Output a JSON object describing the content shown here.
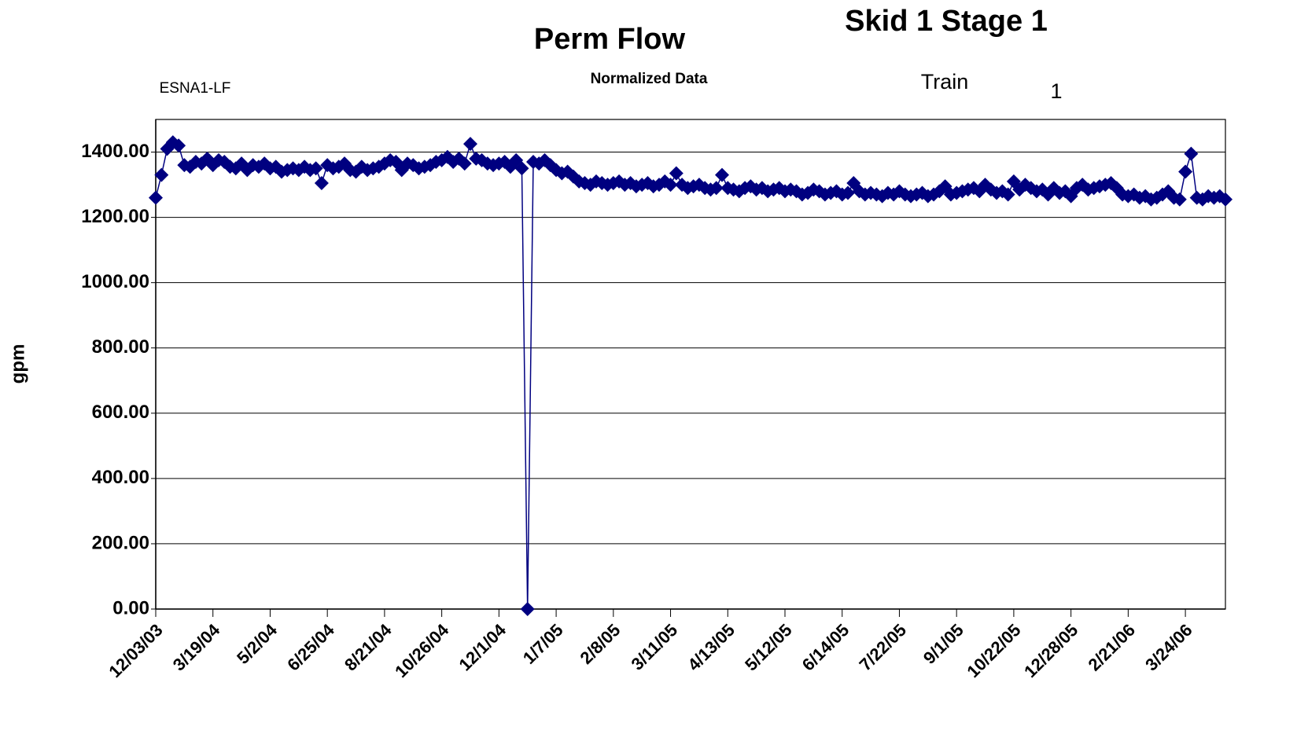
{
  "chart_data": {
    "type": "line",
    "title": "Perm Flow",
    "subtitle": "Normalized Data",
    "annotations": [
      "Skid 1 Stage 1",
      "ESNA1-LF",
      "Train",
      "1"
    ],
    "y_label": "gpm",
    "categories": [
      "12/03/03",
      null,
      null,
      null,
      null,
      null,
      null,
      null,
      null,
      null,
      "3/19/04",
      null,
      null,
      null,
      null,
      null,
      null,
      null,
      null,
      null,
      "5/2/04",
      null,
      null,
      null,
      null,
      null,
      null,
      null,
      null,
      null,
      "6/25/04",
      null,
      null,
      null,
      null,
      null,
      null,
      null,
      null,
      null,
      "8/21/04",
      null,
      null,
      null,
      null,
      null,
      null,
      null,
      null,
      null,
      "10/26/04",
      null,
      null,
      null,
      null,
      null,
      null,
      null,
      null,
      null,
      "12/1/04",
      null,
      null,
      null,
      null,
      null,
      null,
      null,
      null,
      null,
      "1/7/05",
      null,
      null,
      null,
      null,
      null,
      null,
      null,
      null,
      null,
      "2/8/05",
      null,
      null,
      null,
      null,
      null,
      null,
      null,
      null,
      null,
      "3/11/05",
      null,
      null,
      null,
      null,
      null,
      null,
      null,
      null,
      null,
      "4/13/05",
      null,
      null,
      null,
      null,
      null,
      null,
      null,
      null,
      null,
      "5/12/05",
      null,
      null,
      null,
      null,
      null,
      null,
      null,
      null,
      null,
      "6/14/05",
      null,
      null,
      null,
      null,
      null,
      null,
      null,
      null,
      null,
      "7/22/05",
      null,
      null,
      null,
      null,
      null,
      null,
      null,
      null,
      null,
      "9/1/05",
      null,
      null,
      null,
      null,
      null,
      null,
      null,
      null,
      null,
      "10/22/05",
      null,
      null,
      null,
      null,
      null,
      null,
      null,
      null,
      null,
      "12/28/05",
      null,
      null,
      null,
      null,
      null,
      null,
      null,
      null,
      null,
      "2/21/06",
      null,
      null,
      null,
      null,
      null,
      null,
      null,
      null,
      null,
      "3/24/06",
      null,
      null,
      null,
      null,
      null,
      null,
      null
    ],
    "series": [
      {
        "color": "#000080",
        "values": [
          1260,
          1330,
          1410,
          1430,
          1420,
          1360,
          1355,
          1370,
          1365,
          1380,
          1360,
          1375,
          1370,
          1355,
          1350,
          1365,
          1345,
          1360,
          1355,
          1365,
          1350,
          1355,
          1340,
          1345,
          1350,
          1345,
          1355,
          1345,
          1350,
          1305,
          1360,
          1350,
          1355,
          1365,
          1345,
          1340,
          1355,
          1345,
          1350,
          1355,
          1365,
          1375,
          1370,
          1345,
          1365,
          1360,
          1350,
          1355,
          1360,
          1370,
          1375,
          1385,
          1370,
          1380,
          1365,
          1425,
          1380,
          1375,
          1365,
          1360,
          1365,
          1370,
          1355,
          1375,
          1350,
          0,
          1370,
          1365,
          1375,
          1360,
          1345,
          1335,
          1340,
          1325,
          1310,
          1305,
          1300,
          1310,
          1305,
          1300,
          1305,
          1310,
          1300,
          1305,
          1295,
          1300,
          1305,
          1295,
          1300,
          1310,
          1300,
          1335,
          1300,
          1290,
          1295,
          1300,
          1290,
          1285,
          1290,
          1330,
          1290,
          1285,
          1280,
          1290,
          1295,
          1285,
          1290,
          1280,
          1285,
          1290,
          1280,
          1285,
          1280,
          1270,
          1275,
          1285,
          1280,
          1270,
          1275,
          1280,
          1270,
          1275,
          1305,
          1280,
          1270,
          1275,
          1270,
          1265,
          1275,
          1270,
          1280,
          1270,
          1265,
          1270,
          1275,
          1265,
          1270,
          1280,
          1295,
          1270,
          1275,
          1280,
          1285,
          1290,
          1280,
          1300,
          1285,
          1275,
          1280,
          1270,
          1310,
          1285,
          1300,
          1290,
          1280,
          1285,
          1270,
          1290,
          1275,
          1280,
          1265,
          1290,
          1300,
          1285,
          1290,
          1295,
          1300,
          1305,
          1290,
          1270,
          1265,
          1270,
          1260,
          1265,
          1255,
          1260,
          1270,
          1280,
          1260,
          1255,
          1340,
          1395,
          1260,
          1255,
          1265,
          1260,
          1265,
          1255
        ]
      }
    ],
    "ylim": [
      0,
      1500
    ],
    "yticks": [
      {
        "value": 0,
        "label": "0.00"
      },
      {
        "value": 200,
        "label": "200.00"
      },
      {
        "value": 400,
        "label": "400.00"
      },
      {
        "value": 600,
        "label": "600.00"
      },
      {
        "value": 800,
        "label": "800.00"
      },
      {
        "value": 1000,
        "label": "1000.00"
      },
      {
        "value": 1200,
        "label": "1200.00"
      },
      {
        "value": 1400,
        "label": "1400.00"
      }
    ],
    "grid": true
  }
}
